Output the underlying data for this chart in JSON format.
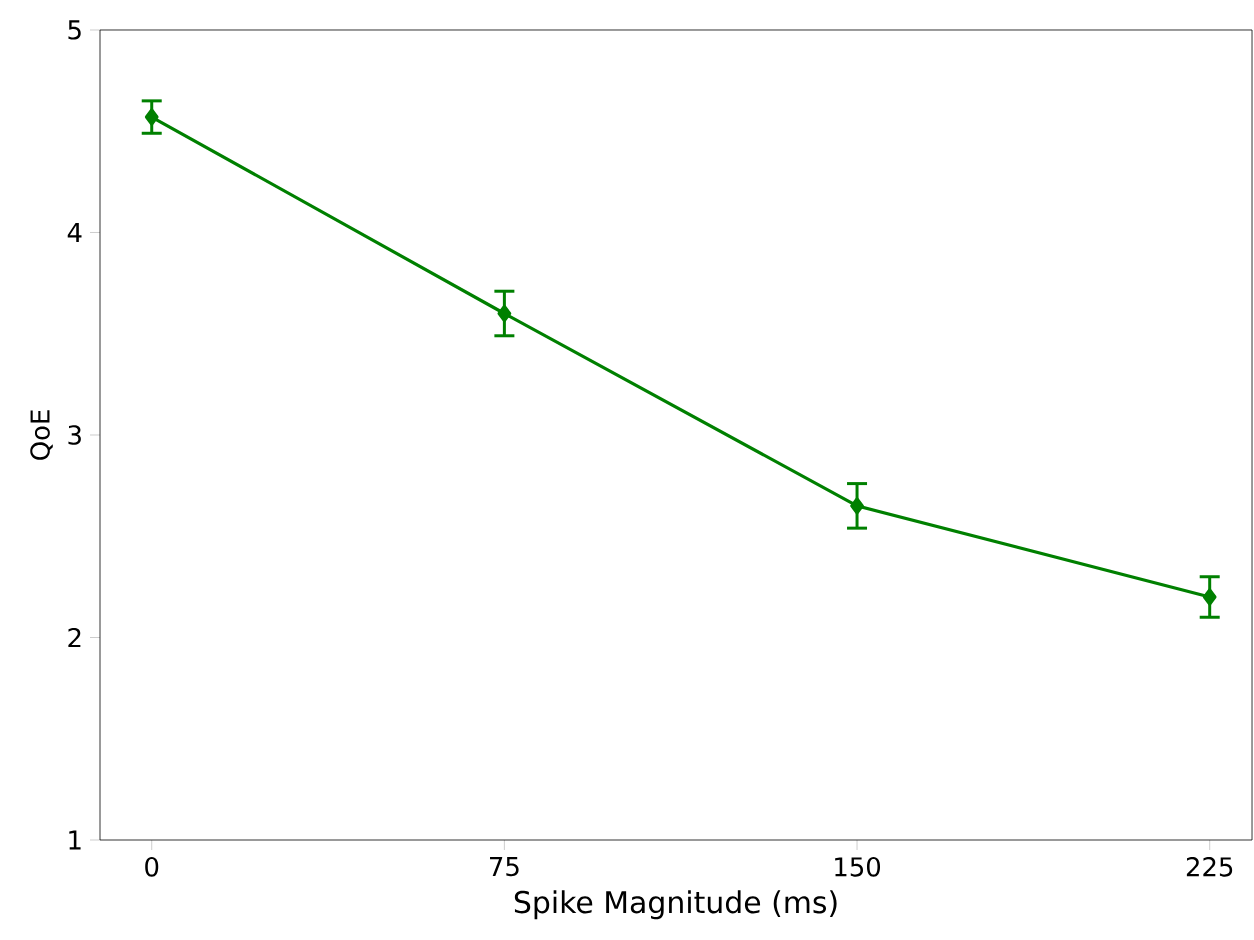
{
  "chart_data": {
    "type": "line",
    "xlabel": "Spike Magnitude (ms)",
    "ylabel": "QoE",
    "x": [
      0,
      75,
      150,
      225
    ],
    "series": [
      {
        "color": "#008000",
        "values": [
          4.57,
          3.6,
          2.65,
          2.2
        ],
        "errors": [
          0.08,
          0.11,
          0.11,
          0.1
        ]
      }
    ],
    "xlim": [
      -11,
      234
    ],
    "ylim": [
      1,
      5
    ],
    "xticks": [
      0,
      75,
      150,
      225
    ],
    "yticks": [
      1,
      2,
      3,
      4,
      5
    ],
    "marker": "diamond",
    "line_style": "solid"
  }
}
